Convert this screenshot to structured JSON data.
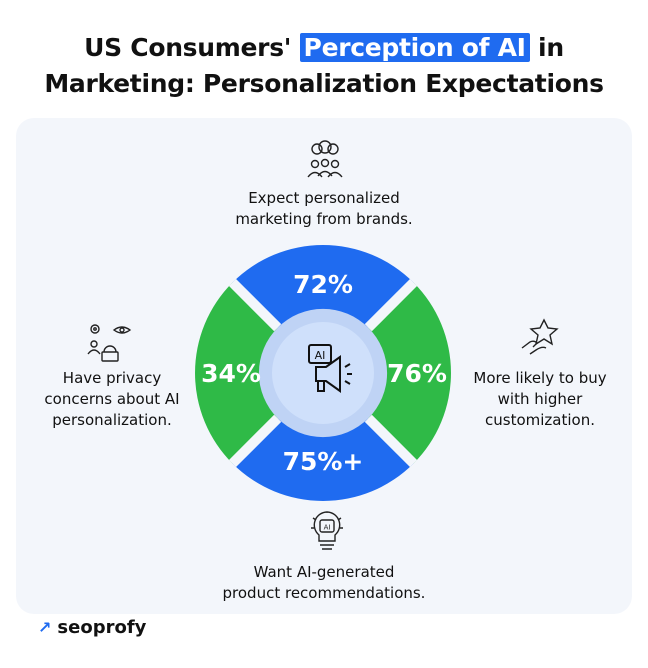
{
  "title": {
    "line1_before": "US Consumers'",
    "line1_highlight": "Perception of AI",
    "line1_after": "in",
    "line2": "Marketing: Personalization Expectations"
  },
  "segments": {
    "top": {
      "value": "72%",
      "label_line1": "Expect personalized",
      "label_line2": "marketing from brands.",
      "icon": "customer-feedback-icon",
      "color": "#1f6bf0"
    },
    "right": {
      "value": "76%",
      "label_line1": "More likely to buy",
      "label_line2": "with higher",
      "label_line3": "customization.",
      "icon": "hand-star-icon",
      "color": "#2fba47"
    },
    "bottom": {
      "value": "75%+",
      "label_line1": "Want AI-generated",
      "label_line2": "product recommendations.",
      "icon": "ai-lightbulb-icon",
      "color": "#1f6bf0"
    },
    "left": {
      "value": "34%",
      "label_line1": "Have privacy",
      "label_line2": "concerns about AI",
      "label_line3": "personalization.",
      "icon": "privacy-lock-icon",
      "color": "#2fba47"
    }
  },
  "center": {
    "badge": "AI",
    "icon": "ai-megaphone-icon"
  },
  "brand": {
    "name": "seoprofy",
    "icon": "arrow-up-right-icon"
  },
  "colors": {
    "blue": "#1f6bf0",
    "green": "#2fba47",
    "ring": "#bfd3f5",
    "center": "#cfe0fb",
    "card": "#f3f6fb"
  }
}
